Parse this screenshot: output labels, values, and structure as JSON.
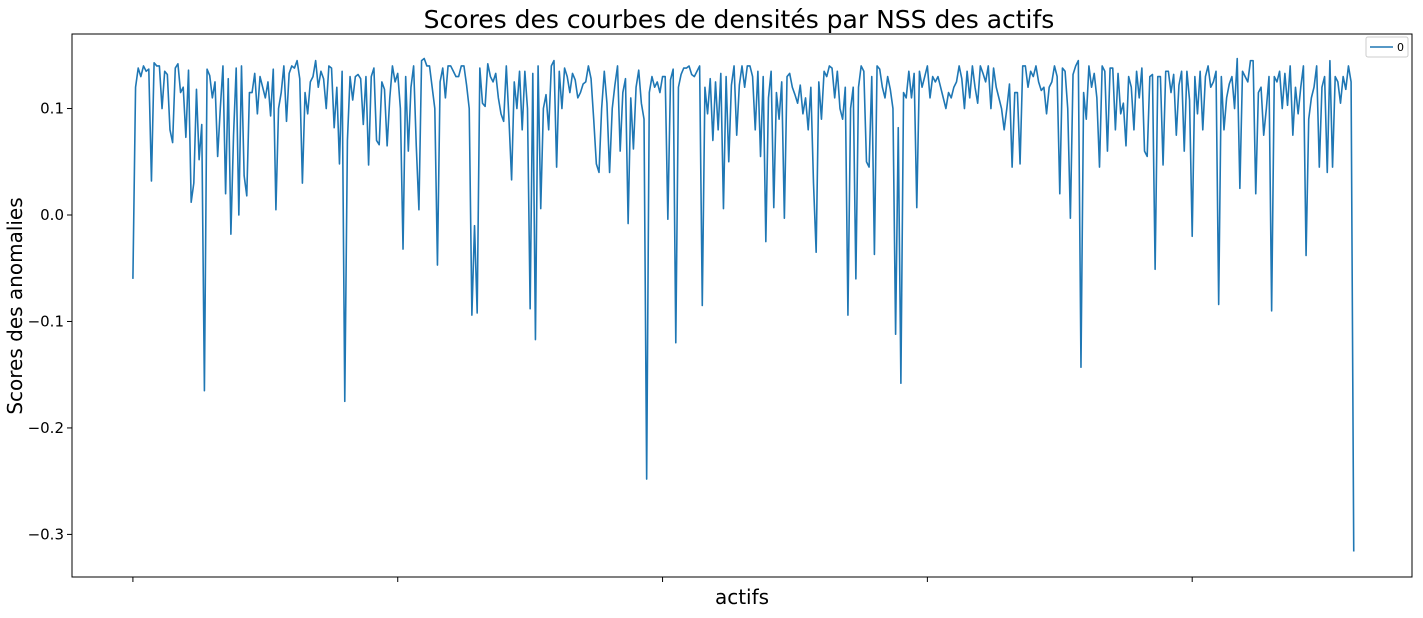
{
  "chart_data": {
    "type": "line",
    "title": "Scores des courbes de densités par NSS des actifs",
    "xlabel": "actifs",
    "ylabel": "Scores des anomalies",
    "ylim": [
      -0.34,
      0.17
    ],
    "xlim": [
      -23,
      483
    ],
    "y_ticks": [
      {
        "value": 0.1,
        "label": "0.1"
      },
      {
        "value": 0.0,
        "label": "0.0"
      },
      {
        "value": -0.1,
        "label": "−0.1"
      },
      {
        "value": -0.2,
        "label": "−0.2"
      },
      {
        "value": -0.3,
        "label": "−0.3"
      }
    ],
    "x_ticks": [
      0,
      100,
      200,
      300,
      400
    ],
    "legend": {
      "position": "top-right",
      "entries": [
        "0"
      ]
    },
    "grid": false,
    "series": [
      {
        "name": "0",
        "color": "#1f77b4",
        "values": [
          -0.06,
          0.12,
          0.138,
          0.13,
          0.14,
          0.135,
          0.137,
          0.032,
          0.143,
          0.14,
          0.14,
          0.1,
          0.135,
          0.132,
          0.08,
          0.068,
          0.138,
          0.142,
          0.115,
          0.12,
          0.073,
          0.136,
          0.012,
          0.03,
          0.118,
          0.052,
          0.085,
          -0.165,
          0.137,
          0.131,
          0.11,
          0.125,
          0.055,
          0.1,
          0.14,
          0.02,
          0.128,
          -0.018,
          0.075,
          0.138,
          0.0,
          0.14,
          0.037,
          0.018,
          0.115,
          0.115,
          0.133,
          0.095,
          0.13,
          0.12,
          0.11,
          0.125,
          0.093,
          0.137,
          0.005,
          0.1,
          0.115,
          0.14,
          0.088,
          0.133,
          0.14,
          0.138,
          0.145,
          0.128,
          0.03,
          0.115,
          0.095,
          0.125,
          0.13,
          0.145,
          0.12,
          0.135,
          0.128,
          0.1,
          0.14,
          0.138,
          0.082,
          0.12,
          0.048,
          0.135,
          -0.175,
          0.07,
          0.13,
          0.108,
          0.13,
          0.132,
          0.128,
          0.085,
          0.13,
          0.047,
          0.13,
          0.138,
          0.07,
          0.066,
          0.125,
          0.118,
          0.065,
          0.11,
          0.14,
          0.125,
          0.133,
          0.1,
          -0.032,
          0.13,
          0.06,
          0.12,
          0.14,
          0.065,
          0.005,
          0.145,
          0.147,
          0.14,
          0.14,
          0.12,
          0.1,
          -0.047,
          0.125,
          0.138,
          0.11,
          0.14,
          0.14,
          0.135,
          0.13,
          0.13,
          0.14,
          0.14,
          0.122,
          0.1,
          -0.094,
          -0.01,
          -0.092,
          0.138,
          0.105,
          0.102,
          0.142,
          0.13,
          0.125,
          0.133,
          0.11,
          0.095,
          0.088,
          0.14,
          0.09,
          0.033,
          0.125,
          0.1,
          0.135,
          0.08,
          0.135,
          0.1,
          -0.088,
          0.133,
          -0.117,
          0.14,
          0.006,
          0.1,
          0.113,
          0.08,
          0.14,
          0.145,
          0.045,
          0.135,
          0.1,
          0.138,
          0.13,
          0.115,
          0.133,
          0.127,
          0.11,
          0.115,
          0.123,
          0.125,
          0.14,
          0.128,
          0.09,
          0.048,
          0.04,
          0.1,
          0.135,
          0.105,
          0.04,
          0.1,
          0.122,
          0.14,
          0.06,
          0.115,
          0.128,
          -0.008,
          0.11,
          0.062,
          0.12,
          0.136,
          0.105,
          0.09,
          -0.248,
          0.115,
          0.13,
          0.12,
          0.125,
          0.115,
          0.13,
          0.13,
          -0.004,
          0.127,
          0.137,
          -0.12,
          0.12,
          0.132,
          0.138,
          0.138,
          0.14,
          0.132,
          0.13,
          0.135,
          0.14,
          -0.085,
          0.12,
          0.095,
          0.128,
          0.07,
          0.125,
          0.08,
          0.133,
          0.006,
          0.13,
          0.05,
          0.122,
          0.14,
          0.075,
          0.122,
          0.14,
          0.12,
          0.14,
          0.14,
          0.13,
          0.08,
          0.135,
          0.055,
          0.13,
          -0.025,
          0.11,
          0.135,
          0.007,
          0.115,
          0.09,
          0.125,
          -0.003,
          0.13,
          0.133,
          0.12,
          0.113,
          0.105,
          0.122,
          0.095,
          0.11,
          0.08,
          0.12,
          0.03,
          -0.035,
          0.125,
          0.09,
          0.135,
          0.13,
          0.14,
          0.138,
          0.11,
          0.135,
          0.1,
          0.09,
          0.12,
          -0.094,
          0.1,
          0.12,
          -0.06,
          0.12,
          0.14,
          0.135,
          0.05,
          0.045,
          0.13,
          -0.037,
          0.14,
          0.137,
          0.12,
          0.11,
          0.13,
          0.118,
          0.1,
          -0.112,
          0.082,
          -0.158,
          0.115,
          0.11,
          0.135,
          0.11,
          0.133,
          0.007,
          0.135,
          0.12,
          0.13,
          0.14,
          0.11,
          0.13,
          0.125,
          0.13,
          0.12,
          0.11,
          0.1,
          0.115,
          0.11,
          0.12,
          0.125,
          0.14,
          0.128,
          0.1,
          0.135,
          0.11,
          0.14,
          0.12,
          0.105,
          0.14,
          0.133,
          0.125,
          0.14,
          0.1,
          0.138,
          0.12,
          0.11,
          0.1,
          0.08,
          0.1,
          0.123,
          0.045,
          0.115,
          0.115,
          0.048,
          0.14,
          0.14,
          0.12,
          0.135,
          0.13,
          0.14,
          0.125,
          0.117,
          0.12,
          0.095,
          0.12,
          0.125,
          0.14,
          0.13,
          0.02,
          0.138,
          0.135,
          0.1,
          -0.003,
          0.132,
          0.14,
          0.145,
          -0.143,
          0.115,
          0.09,
          0.14,
          0.12,
          0.133,
          0.11,
          0.045,
          0.14,
          0.135,
          0.06,
          0.138,
          0.138,
          0.08,
          0.133,
          0.095,
          0.105,
          0.065,
          0.13,
          0.12,
          0.08,
          0.135,
          0.11,
          0.138,
          0.06,
          0.055,
          0.13,
          0.132,
          -0.051,
          0.13,
          0.13,
          0.047,
          0.135,
          0.135,
          0.115,
          0.132,
          0.075,
          0.122,
          0.135,
          0.06,
          0.135,
          0.108,
          -0.02,
          0.13,
          0.095,
          0.135,
          0.08,
          0.13,
          0.14,
          0.12,
          0.125,
          0.135,
          -0.084,
          0.13,
          0.08,
          0.11,
          0.123,
          0.13,
          0.1,
          0.147,
          0.025,
          0.135,
          0.13,
          0.125,
          0.145,
          0.145,
          0.02,
          0.115,
          0.12,
          0.075,
          0.1,
          0.13,
          -0.09,
          0.13,
          0.125,
          0.135,
          0.1,
          0.133,
          0.103,
          0.14,
          0.075,
          0.12,
          0.095,
          0.12,
          0.14,
          -0.038,
          0.09,
          0.11,
          0.12,
          0.14,
          0.045,
          0.12,
          0.13,
          0.04,
          0.145,
          0.045,
          0.13,
          0.125,
          0.105,
          0.13,
          0.118,
          0.14,
          0.125,
          -0.316
        ]
      }
    ]
  }
}
